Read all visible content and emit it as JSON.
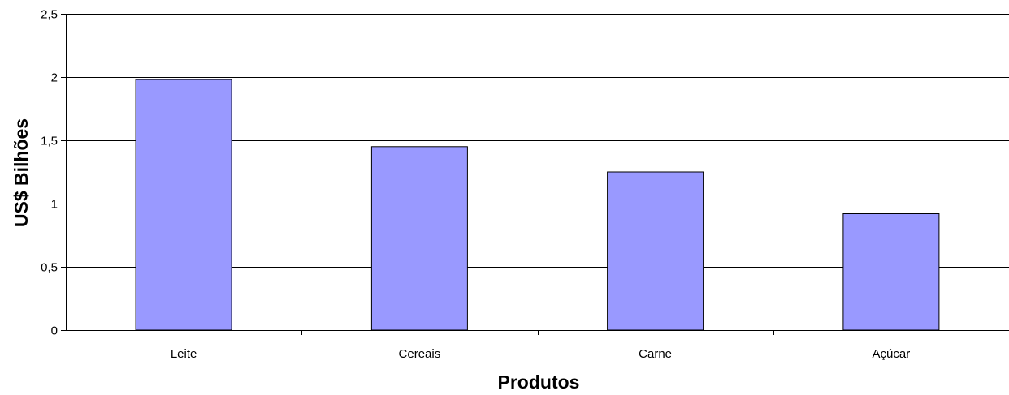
{
  "chart_data": {
    "type": "bar",
    "title": "",
    "xlabel": "Produtos",
    "ylabel": "US$ Bilhões",
    "categories": [
      "Leite",
      "Cereais",
      "Carne",
      "Açúcar"
    ],
    "series": [
      {
        "values": [
          1.98,
          1.45,
          1.25,
          0.92
        ]
      }
    ],
    "ylim": [
      0,
      2.5
    ],
    "yticks": [
      0,
      0.5,
      1,
      1.5,
      2,
      2.5
    ],
    "ytick_labels": [
      "0",
      "0,5",
      "1",
      "1,5",
      "2",
      "2,5"
    ],
    "grid": true,
    "legend": "none",
    "bar_color": "#9999ff",
    "bar_edge_color": "#000000",
    "grid_color": "#000000"
  }
}
